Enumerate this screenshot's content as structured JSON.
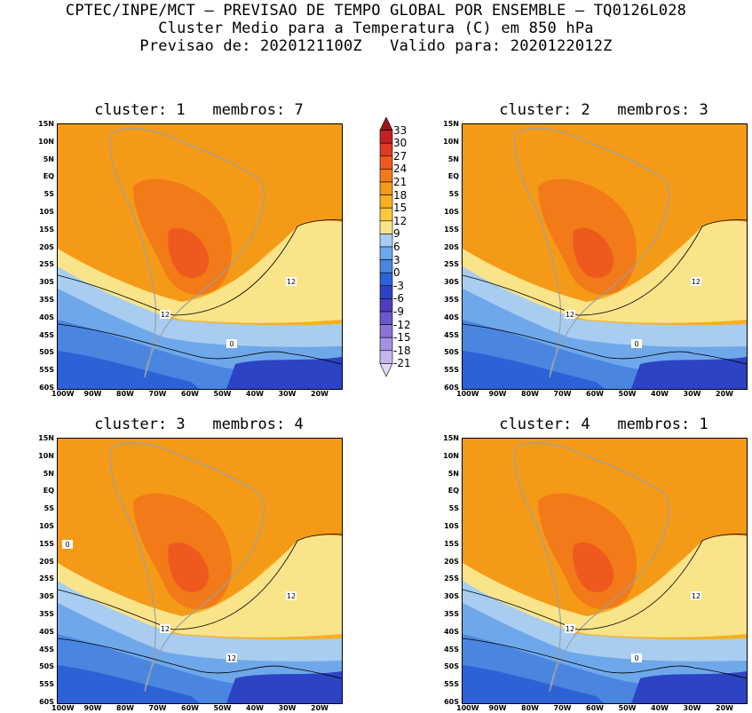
{
  "header": {
    "line1": "CPTEC/INPE/MCT — PREVISAO DE TEMPO GLOBAL POR ENSEMBLE — TQ0126L028",
    "line2": "Cluster Medio para a Temperatura (C) em 850 hPa",
    "line3": "Previsao de: 2020121100Z   Valido para: 2020122012Z"
  },
  "panels": [
    {
      "title": "cluster: 1   membros: 7",
      "contour_labels": [
        "12",
        "12",
        "0"
      ]
    },
    {
      "title": "cluster: 2   membros: 3",
      "contour_labels": [
        "12",
        "12",
        "0"
      ]
    },
    {
      "title": "cluster: 3   membros: 4",
      "contour_labels": [
        "12",
        "12",
        "12",
        "0"
      ]
    },
    {
      "title": "cluster: 4   membros: 1",
      "contour_labels": [
        "12",
        "12",
        "0"
      ]
    }
  ],
  "lat_labels": [
    "15N",
    "10N",
    "5N",
    "EQ",
    "5S",
    "10S",
    "15S",
    "20S",
    "25S",
    "30S",
    "35S",
    "40S",
    "45S",
    "50S",
    "55S",
    "60S"
  ],
  "lon_labels": [
    "100W",
    "90W",
    "80W",
    "70W",
    "60W",
    "50W",
    "40W",
    "30W",
    "20W"
  ],
  "colorbar": {
    "levels": [
      "33",
      "30",
      "27",
      "24",
      "21",
      "18",
      "15",
      "12",
      "9",
      "6",
      "3",
      "0",
      "-3",
      "-6",
      "-9",
      "-12",
      "-15",
      "-18",
      "-21"
    ],
    "colors": [
      "#a01418",
      "#c42026",
      "#dc3a22",
      "#ee5a1e",
      "#f27a18",
      "#f59a16",
      "#f7b022",
      "#f9c83c",
      "#fae48a",
      "#a8cdf0",
      "#6fa8ea",
      "#4a86e0",
      "#2c62d6",
      "#2c44c4",
      "#4e3ebe",
      "#6c56cc",
      "#8a72d8",
      "#a690e2",
      "#c6b6ee",
      "#e2d8f6"
    ]
  }
}
